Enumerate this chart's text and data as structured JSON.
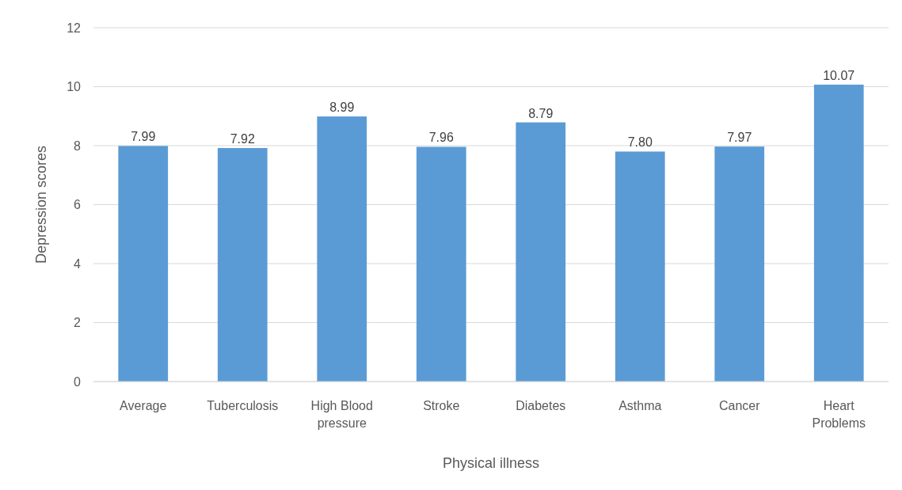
{
  "chart_data": {
    "type": "bar",
    "xlabel": "Physical illness",
    "ylabel": "Depression scores",
    "categories": [
      "Average",
      "Tuberculosis",
      "High Blood pressure",
      "Stroke",
      "Diabetes",
      "Asthma",
      "Cancer",
      "Heart Problems"
    ],
    "values": [
      7.99,
      7.92,
      8.99,
      7.96,
      8.79,
      7.8,
      7.97,
      10.07
    ],
    "value_labels": [
      "7.99",
      "7.92",
      "8.99",
      "7.96",
      "8.79",
      "7.80",
      "7.97",
      "10.07"
    ],
    "color": "#5b9bd5",
    "ylim": [
      0,
      12
    ],
    "yticks": [
      0,
      2,
      4,
      6,
      8,
      10,
      12
    ],
    "grid": "y"
  }
}
